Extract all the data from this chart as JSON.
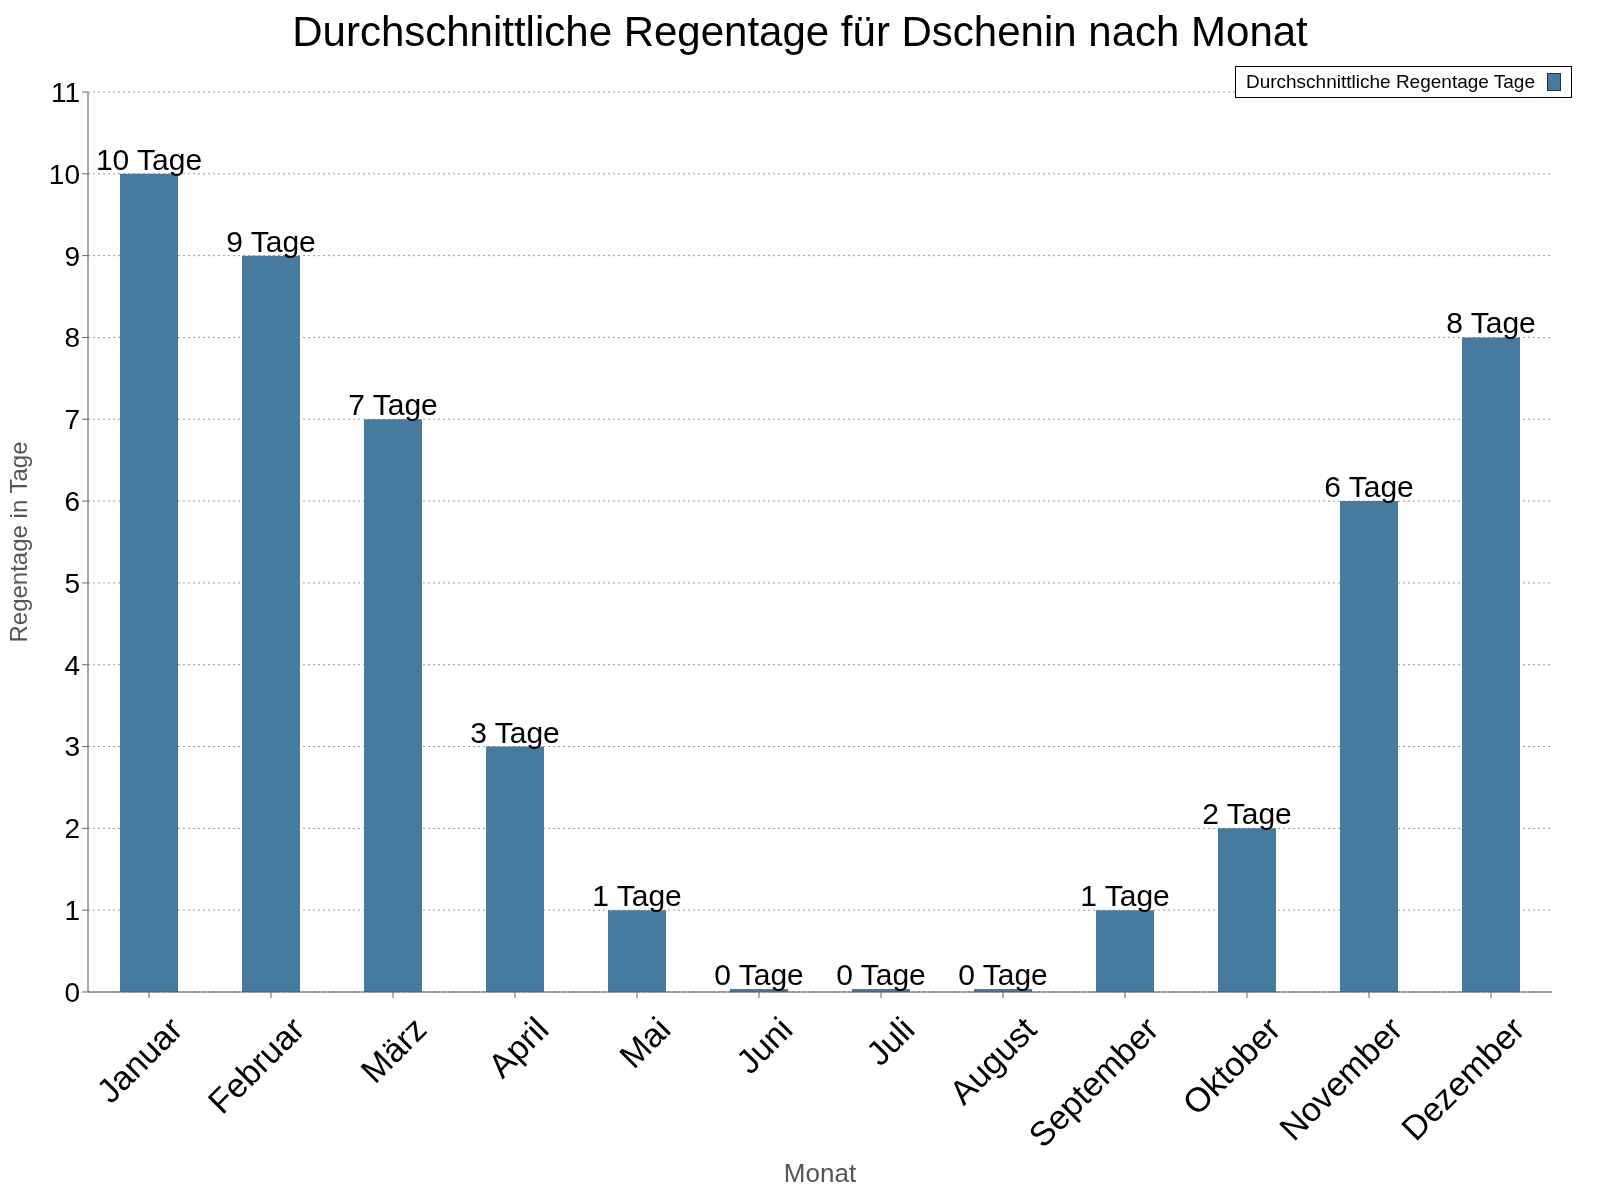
{
  "chart_data": {
    "type": "bar",
    "title": "Durchschnittliche Regentage für Dschenin nach Monat",
    "xlabel": "Monat",
    "ylabel": "Regentage in Tage",
    "categories": [
      "Januar",
      "Februar",
      "März",
      "April",
      "Mai",
      "Juni",
      "Juli",
      "August",
      "September",
      "Oktober",
      "November",
      "Dezember"
    ],
    "series": [
      {
        "name": "Durchschnittliche Regentage Tage",
        "color": "#467a9e",
        "values": [
          10,
          9,
          7,
          3,
          1,
          0,
          0,
          0,
          1,
          2,
          6,
          8
        ],
        "value_labels": [
          "10 Tage",
          "9 Tage",
          "7 Tage",
          "3 Tage",
          "1 Tage",
          "0 Tage",
          "0 Tage",
          "0 Tage",
          "1 Tage",
          "2 Tage",
          "6 Tage",
          "8 Tage"
        ]
      }
    ],
    "ylim": [
      0,
      11
    ],
    "yticks": [
      0,
      1,
      2,
      3,
      4,
      5,
      6,
      7,
      8,
      9,
      10,
      11
    ],
    "grid": "y",
    "legend": "top right"
  }
}
